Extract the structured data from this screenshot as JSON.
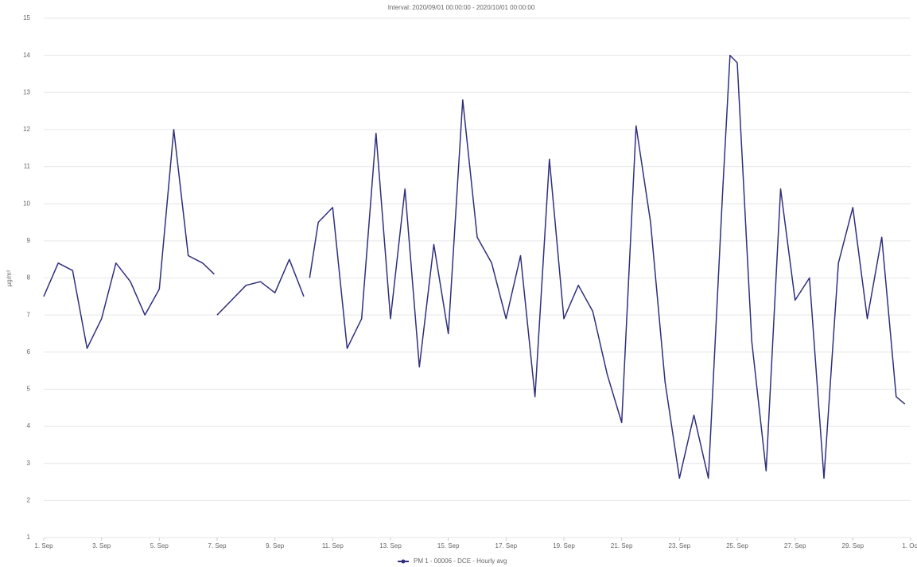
{
  "chart_data": {
    "type": "line",
    "title": "Interval: 2020/09/01 00:00:00 - 2020/10/01 00:00:00",
    "y_label": "µg/m³",
    "x": [
      0,
      0.5,
      1,
      1.5,
      2,
      2.5,
      3,
      3.5,
      4,
      4.5,
      5,
      5.5,
      5.9,
      5.95,
      6,
      6.5,
      7,
      7.5,
      8,
      8.5,
      9,
      9.1,
      9.2,
      9.5,
      10,
      10.5,
      11,
      11.5,
      12,
      12.5,
      13,
      13.5,
      14,
      14.5,
      15,
      15.5,
      16,
      16.5,
      17,
      17.5,
      18,
      18.5,
      19,
      19.5,
      20,
      20.5,
      21,
      21.5,
      22,
      22.5,
      23,
      23.5,
      23.75,
      24,
      24.5,
      25,
      25.5,
      26,
      26.5,
      27,
      27.5,
      28,
      28.5,
      29,
      29.5,
      29.8
    ],
    "series": [
      {
        "name": "PM 1 - 00006 - DCE - Hourly avg",
        "color": "#2f2f7e",
        "values": [
          7.5,
          8.4,
          8.2,
          6.1,
          6.9,
          8.4,
          7.9,
          7.0,
          7.7,
          12.0,
          8.6,
          8.4,
          8.1,
          null,
          7.0,
          7.4,
          7.8,
          7.9,
          7.6,
          8.5,
          7.5,
          null,
          8.0,
          9.5,
          9.9,
          6.1,
          6.9,
          11.9,
          6.9,
          10.4,
          5.6,
          8.9,
          6.5,
          12.8,
          9.1,
          8.4,
          6.9,
          8.6,
          4.8,
          11.2,
          6.9,
          7.8,
          7.1,
          5.4,
          4.1,
          12.1,
          9.5,
          5.2,
          2.6,
          4.3,
          2.6,
          10.4,
          14.0,
          13.8,
          6.3,
          2.8,
          10.4,
          7.4,
          8.0,
          2.6,
          8.4,
          9.9,
          6.9,
          9.1,
          4.8,
          4.6
        ]
      }
    ],
    "xlim": [
      0,
      30
    ],
    "xticks": [
      {
        "value": 0,
        "label": "1. Sep"
      },
      {
        "value": 2,
        "label": "3. Sep"
      },
      {
        "value": 4,
        "label": "5. Sep"
      },
      {
        "value": 6,
        "label": "7. Sep"
      },
      {
        "value": 8,
        "label": "9. Sep"
      },
      {
        "value": 10,
        "label": "11. Sep"
      },
      {
        "value": 12,
        "label": "13. Sep"
      },
      {
        "value": 14,
        "label": "15. Sep"
      },
      {
        "value": 16,
        "label": "17. Sep"
      },
      {
        "value": 18,
        "label": "19. Sep"
      },
      {
        "value": 20,
        "label": "21. Sep"
      },
      {
        "value": 22,
        "label": "23. Sep"
      },
      {
        "value": 24,
        "label": "25. Sep"
      },
      {
        "value": 26,
        "label": "27. Sep"
      },
      {
        "value": 28,
        "label": "29. Sep"
      },
      {
        "value": 30,
        "label": "1. Oct"
      }
    ],
    "ylim": [
      1,
      15
    ],
    "yticks": [
      1,
      2,
      3,
      4,
      5,
      6,
      7,
      8,
      9,
      10,
      11,
      12,
      13,
      14,
      15
    ],
    "grid": true
  }
}
